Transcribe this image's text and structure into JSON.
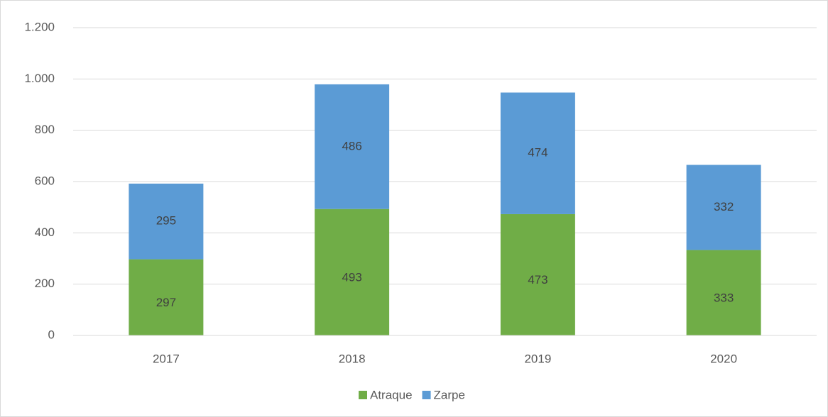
{
  "chart_data": {
    "type": "stacked_bar",
    "categories": [
      "2017",
      "2018",
      "2019",
      "2020"
    ],
    "series": [
      {
        "name": "Atraque",
        "color": "#70ad47",
        "values": [
          297,
          493,
          473,
          333
        ]
      },
      {
        "name": "Zarpe",
        "color": "#5b9bd5",
        "values": [
          295,
          486,
          474,
          332
        ]
      }
    ],
    "ylim": [
      0,
      1200
    ],
    "yticks": [
      0,
      200,
      400,
      600,
      800,
      {
        "value": 1000,
        "label": "1.000"
      },
      {
        "value": 1200,
        "label": "1.200"
      }
    ],
    "grid": true,
    "legend": "bottom"
  }
}
